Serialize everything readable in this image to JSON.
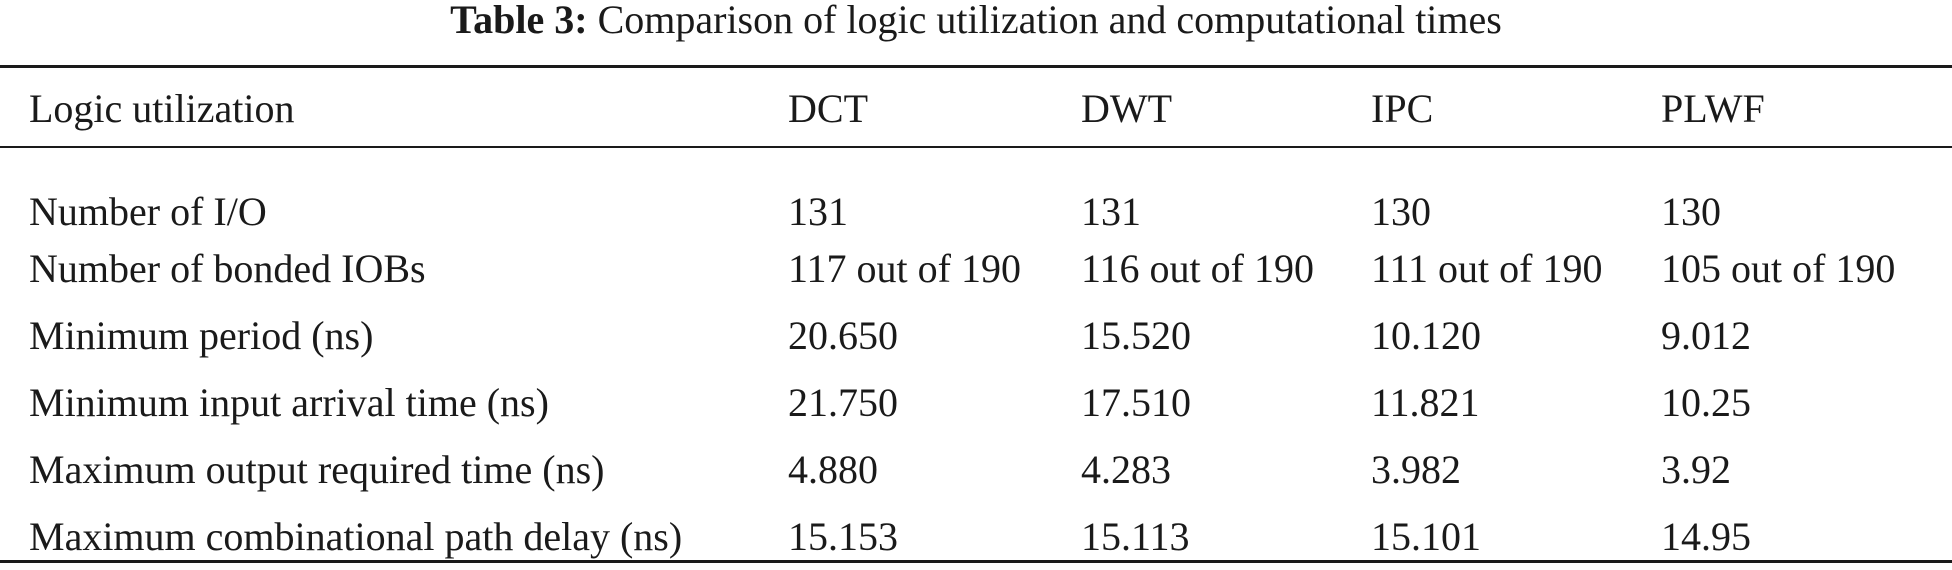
{
  "caption": {
    "label": "Table 3:",
    "text": "Comparison of logic utilization and computational times"
  },
  "table": {
    "columns": [
      "Logic utilization",
      "DCT",
      "DWT",
      "IPC",
      "PLWF"
    ],
    "rows": [
      [
        "Number of I/O",
        "131",
        "131",
        "130",
        "130"
      ],
      [
        "Number of bonded IOBs",
        "117 out of 190",
        "116 out of 190",
        "111 out of 190",
        "105 out of 190"
      ],
      [
        "Minimum period (ns)",
        "20.650",
        "15.520",
        "10.120",
        "9.012"
      ],
      [
        "Minimum input arrival time (ns)",
        "21.750",
        "17.510",
        "11.821",
        "10.25"
      ],
      [
        "Maximum output required time (ns)",
        "4.880",
        "4.283",
        "3.982",
        "3.92"
      ],
      [
        "Maximum combinational path delay (ns)",
        "15.153",
        "15.113",
        "15.101",
        "14.95"
      ]
    ]
  }
}
